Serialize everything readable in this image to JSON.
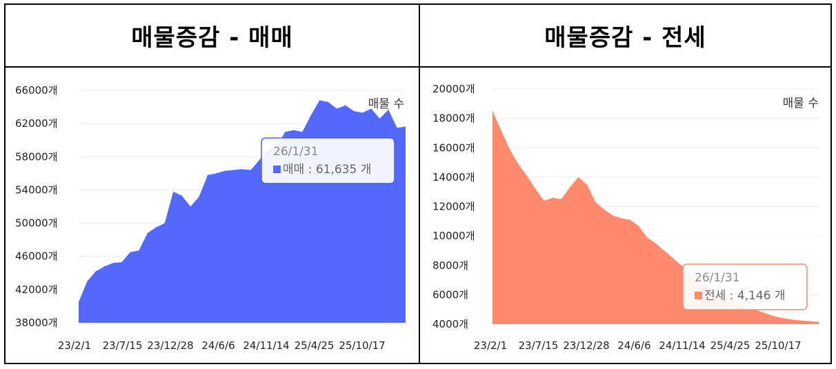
{
  "panels": [
    {
      "title": "매물증감 - 매매",
      "legend": "매물 수",
      "color": "#5468FA",
      "tooltip": {
        "date": "26/1/31",
        "text": "매매 : 61,635 개",
        "border": "#4A5FE6"
      },
      "chart_data": {
        "type": "area",
        "ylim": [
          38000,
          66000
        ],
        "yticks": [
          "66000개",
          "62000개",
          "58000개",
          "54000개",
          "50000개",
          "46000개",
          "42000개",
          "38000개"
        ],
        "ytick_values": [
          66000,
          62000,
          58000,
          54000,
          50000,
          46000,
          42000,
          38000
        ],
        "xticks": [
          "23/2/1",
          "23/7/15",
          "23/12/28",
          "24/6/6",
          "24/11/14",
          "25/4/25",
          "25/10/17"
        ],
        "series": [
          {
            "values": [
              40500,
              43000,
              44200,
              44800,
              45200,
              45300,
              46500,
              46700,
              48800,
              49500,
              50000,
              53800,
              53300,
              52000,
              53200,
              55800,
              56000,
              56300,
              56400,
              56500,
              56400,
              57600,
              58800,
              59200,
              61000,
              61200,
              61000,
              63000,
              64800,
              64600,
              63800,
              64200,
              63500,
              63300,
              63800,
              62600,
              63700,
              61500,
              61635
            ]
          }
        ]
      }
    },
    {
      "title": "매물증감 - 전세",
      "legend": "매물 수",
      "color": "#FF8A6E",
      "tooltip": {
        "date": "26/1/31",
        "text": "전세 : 4,146 개",
        "border": "#F08A70"
      },
      "chart_data": {
        "type": "area",
        "ylim": [
          4000,
          20000
        ],
        "yticks": [
          "20000개",
          "18000개",
          "16000개",
          "14000개",
          "12000개",
          "10000개",
          "8000개",
          "6000개",
          "4000개"
        ],
        "ytick_values": [
          20000,
          18000,
          16000,
          14000,
          12000,
          10000,
          8000,
          6000,
          4000
        ],
        "xticks": [
          "23/2/1",
          "23/7/15",
          "23/12/28",
          "24/6/6",
          "24/11/14",
          "25/4/25",
          "25/10/17"
        ],
        "series": [
          {
            "values": [
              18500,
              17200,
              15900,
              14900,
              14100,
              13200,
              12400,
              12600,
              12500,
              13300,
              14000,
              13500,
              12300,
              11800,
              11400,
              11200,
              11100,
              10700,
              9900,
              9500,
              9000,
              8500,
              8000,
              7500,
              7100,
              6700,
              6300,
              6000,
              5700,
              5400,
              5100,
              4900,
              4700,
              4500,
              4400,
              4300,
              4250,
              4200,
              4146
            ]
          }
        ]
      }
    }
  ]
}
